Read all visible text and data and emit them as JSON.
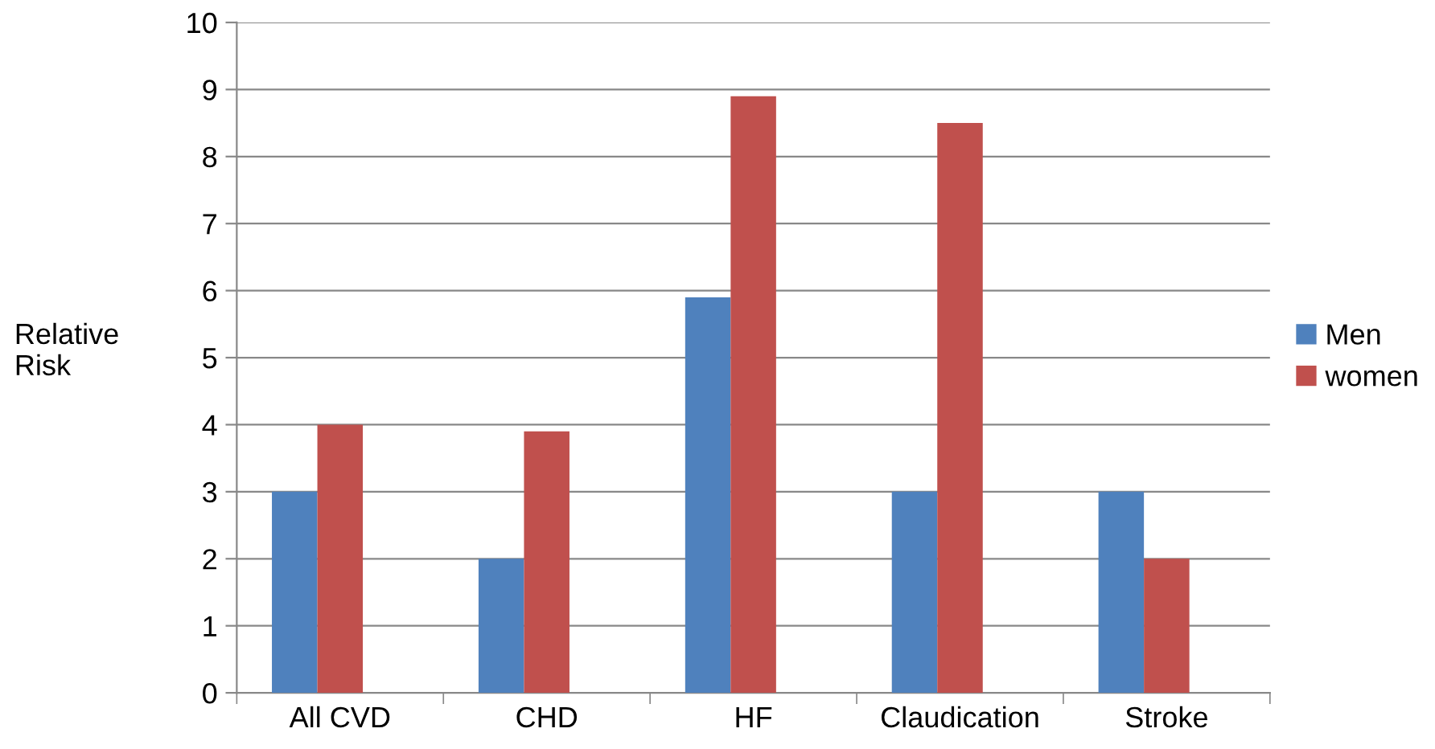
{
  "chart_data": {
    "type": "bar",
    "ylabel": "Relative\nRisk",
    "categories": [
      "All CVD",
      "CHD",
      "HF",
      "Claudication",
      "Stroke"
    ],
    "series": [
      {
        "name": "Men",
        "color": "#4f81bd",
        "values": [
          3,
          2,
          5.9,
          3,
          3
        ]
      },
      {
        "name": "women",
        "color": "#c0504d",
        "values": [
          4,
          3.9,
          8.9,
          8.5,
          2
        ]
      }
    ],
    "ylim": [
      0,
      10
    ],
    "yticks": [
      0,
      1,
      2,
      3,
      4,
      5,
      6,
      7,
      8,
      9,
      10
    ],
    "grid": "y",
    "legend": "right"
  }
}
